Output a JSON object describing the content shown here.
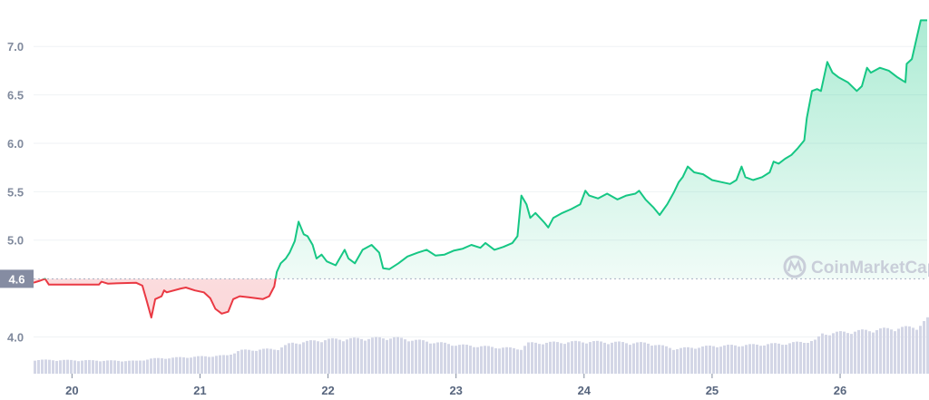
{
  "chart_data": {
    "type": "line",
    "title": "",
    "xlabel": "",
    "ylabel": "",
    "xlim": [
      19.7,
      26.68
    ],
    "ylim": [
      3.62,
      7.48
    ],
    "x_ticks": [
      "20",
      "21",
      "22",
      "23",
      "24",
      "25",
      "26"
    ],
    "y_ticks": [
      "4.0",
      "5.0",
      "5.5",
      "6.0",
      "6.5",
      "7.0"
    ],
    "baseline": {
      "value": 4.6,
      "label": "4.6"
    },
    "grid": true,
    "colors": {
      "up": "#16c784",
      "down": "#ea3943",
      "volume": "#d3d6e6",
      "badge": "#858ca2"
    },
    "watermark": "CoinMarketCap",
    "price": [
      [
        19.7,
        4.56
      ],
      [
        19.75,
        4.58
      ],
      [
        19.79,
        4.6
      ],
      [
        19.82,
        4.54
      ],
      [
        20.0,
        4.54
      ],
      [
        20.21,
        4.54
      ],
      [
        20.23,
        4.57
      ],
      [
        20.28,
        4.55
      ],
      [
        20.5,
        4.56
      ],
      [
        20.55,
        4.53
      ],
      [
        20.58,
        4.39
      ],
      [
        20.62,
        4.2
      ],
      [
        20.65,
        4.39
      ],
      [
        20.7,
        4.42
      ],
      [
        20.72,
        4.48
      ],
      [
        20.74,
        4.46
      ],
      [
        20.85,
        4.5
      ],
      [
        20.89,
        4.51
      ],
      [
        20.96,
        4.48
      ],
      [
        21.03,
        4.46
      ],
      [
        21.08,
        4.4
      ],
      [
        21.12,
        4.29
      ],
      [
        21.17,
        4.24
      ],
      [
        21.22,
        4.26
      ],
      [
        21.26,
        4.39
      ],
      [
        21.31,
        4.42
      ],
      [
        21.38,
        4.41
      ],
      [
        21.49,
        4.39
      ],
      [
        21.54,
        4.42
      ],
      [
        21.58,
        4.52
      ],
      [
        21.6,
        4.67
      ],
      [
        21.63,
        4.76
      ],
      [
        21.67,
        4.81
      ],
      [
        21.7,
        4.87
      ],
      [
        21.74,
        4.99
      ],
      [
        21.77,
        5.19
      ],
      [
        21.81,
        5.06
      ],
      [
        21.84,
        5.04
      ],
      [
        21.88,
        4.95
      ],
      [
        21.91,
        4.81
      ],
      [
        21.95,
        4.85
      ],
      [
        21.99,
        4.78
      ],
      [
        22.06,
        4.74
      ],
      [
        22.13,
        4.9
      ],
      [
        22.16,
        4.81
      ],
      [
        22.21,
        4.76
      ],
      [
        22.27,
        4.9
      ],
      [
        22.34,
        4.95
      ],
      [
        22.4,
        4.87
      ],
      [
        22.43,
        4.71
      ],
      [
        22.48,
        4.7
      ],
      [
        22.55,
        4.76
      ],
      [
        22.62,
        4.83
      ],
      [
        22.7,
        4.87
      ],
      [
        22.77,
        4.9
      ],
      [
        22.84,
        4.84
      ],
      [
        22.91,
        4.85
      ],
      [
        22.98,
        4.89
      ],
      [
        23.05,
        4.91
      ],
      [
        23.12,
        4.95
      ],
      [
        23.19,
        4.92
      ],
      [
        23.23,
        4.97
      ],
      [
        23.3,
        4.9
      ],
      [
        23.37,
        4.93
      ],
      [
        23.44,
        4.97
      ],
      [
        23.48,
        5.04
      ],
      [
        23.51,
        5.46
      ],
      [
        23.55,
        5.37
      ],
      [
        23.58,
        5.23
      ],
      [
        23.62,
        5.28
      ],
      [
        23.69,
        5.18
      ],
      [
        23.72,
        5.13
      ],
      [
        23.76,
        5.23
      ],
      [
        23.83,
        5.28
      ],
      [
        23.9,
        5.32
      ],
      [
        23.97,
        5.37
      ],
      [
        24.01,
        5.51
      ],
      [
        24.04,
        5.46
      ],
      [
        24.11,
        5.43
      ],
      [
        24.18,
        5.48
      ],
      [
        24.26,
        5.42
      ],
      [
        24.33,
        5.46
      ],
      [
        24.4,
        5.48
      ],
      [
        24.43,
        5.51
      ],
      [
        24.48,
        5.42
      ],
      [
        24.54,
        5.34
      ],
      [
        24.59,
        5.26
      ],
      [
        24.65,
        5.37
      ],
      [
        24.7,
        5.49
      ],
      [
        24.74,
        5.6
      ],
      [
        24.77,
        5.65
      ],
      [
        24.81,
        5.76
      ],
      [
        24.86,
        5.7
      ],
      [
        24.93,
        5.68
      ],
      [
        25.0,
        5.62
      ],
      [
        25.07,
        5.6
      ],
      [
        25.14,
        5.58
      ],
      [
        25.19,
        5.62
      ],
      [
        25.23,
        5.76
      ],
      [
        25.26,
        5.65
      ],
      [
        25.32,
        5.62
      ],
      [
        25.39,
        5.65
      ],
      [
        25.45,
        5.7
      ],
      [
        25.48,
        5.81
      ],
      [
        25.52,
        5.79
      ],
      [
        25.57,
        5.84
      ],
      [
        25.62,
        5.88
      ],
      [
        25.67,
        5.95
      ],
      [
        25.72,
        6.03
      ],
      [
        25.74,
        6.26
      ],
      [
        25.78,
        6.54
      ],
      [
        25.82,
        6.56
      ],
      [
        25.85,
        6.54
      ],
      [
        25.9,
        6.84
      ],
      [
        25.94,
        6.73
      ],
      [
        25.99,
        6.68
      ],
      [
        26.06,
        6.63
      ],
      [
        26.13,
        6.54
      ],
      [
        26.17,
        6.59
      ],
      [
        26.21,
        6.78
      ],
      [
        26.24,
        6.73
      ],
      [
        26.31,
        6.78
      ],
      [
        26.38,
        6.75
      ],
      [
        26.45,
        6.68
      ],
      [
        26.51,
        6.63
      ],
      [
        26.52,
        6.82
      ],
      [
        26.56,
        6.87
      ],
      [
        26.6,
        7.1
      ],
      [
        26.63,
        7.27
      ],
      [
        26.68,
        7.27
      ]
    ],
    "volume_relative": [
      [
        19.7,
        0.25
      ],
      [
        20.5,
        0.23
      ],
      [
        20.6,
        0.27
      ],
      [
        21.2,
        0.33
      ],
      [
        21.3,
        0.42
      ],
      [
        21.6,
        0.45
      ],
      [
        21.7,
        0.55
      ],
      [
        22.0,
        0.62
      ],
      [
        22.5,
        0.65
      ],
      [
        23.0,
        0.52
      ],
      [
        23.5,
        0.45
      ],
      [
        23.55,
        0.55
      ],
      [
        24.0,
        0.58
      ],
      [
        24.5,
        0.55
      ],
      [
        24.7,
        0.45
      ],
      [
        25.0,
        0.5
      ],
      [
        25.3,
        0.52
      ],
      [
        25.6,
        0.55
      ],
      [
        25.8,
        0.6
      ],
      [
        25.85,
        0.72
      ],
      [
        26.3,
        0.8
      ],
      [
        26.6,
        0.85
      ],
      [
        26.68,
        1.0
      ]
    ]
  }
}
